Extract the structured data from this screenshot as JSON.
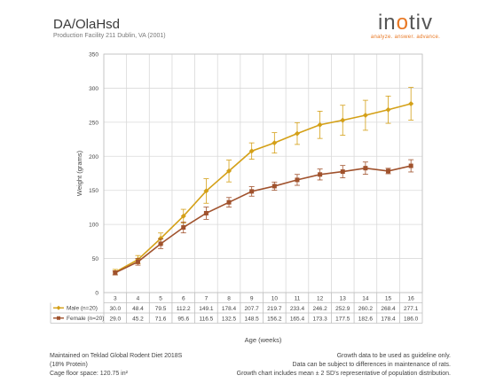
{
  "header": {
    "title": "DA/OlaHsd",
    "subtitle": "Production Facility 211 Dublin, VA (2001)"
  },
  "brand": {
    "name_part1": "in",
    "name_accent": "o",
    "name_part2": "tiv",
    "tagline": "analyze. answer. advance."
  },
  "colors": {
    "male": "#d4a017",
    "female": "#a0522d",
    "grid": "#d9d9d9",
    "brand_accent": "#e87722"
  },
  "chart_data": {
    "type": "line",
    "ylabel": "Weight (grams)",
    "xlabel": "Age (weeks)",
    "ylim": [
      0,
      350
    ],
    "yticks": [
      0,
      50,
      100,
      150,
      200,
      250,
      300,
      350
    ],
    "grid": true,
    "categories": [
      3,
      4,
      5,
      6,
      7,
      8,
      9,
      10,
      11,
      12,
      13,
      14,
      15,
      16
    ],
    "series": [
      {
        "name": "Male (n=20)",
        "marker": "diamond",
        "values": [
          30.0,
          48.4,
          79.5,
          112.2,
          149.1,
          178.4,
          207.7,
          219.7,
          233.4,
          246.2,
          252.9,
          260.2,
          268.4,
          277.1
        ],
        "labels": [
          "30.0",
          "48.4",
          "79.5",
          "112.2",
          "149.1",
          "178.4",
          "207.7",
          "219.7",
          "233.4",
          "246.2",
          "252.9",
          "260.2",
          "268.4",
          "277.1"
        ],
        "error": [
          4,
          6,
          8,
          10,
          18,
          16,
          12,
          15,
          16,
          20,
          22,
          22,
          20,
          24
        ]
      },
      {
        "name": "Female (n=20)",
        "marker": "square",
        "values": [
          29.0,
          45.2,
          71.6,
          95.6,
          116.5,
          132.5,
          148.5,
          156.2,
          165.4,
          173.3,
          177.5,
          182.6,
          178.4,
          186.0
        ],
        "labels": [
          "29.0",
          "45.2",
          "71.6",
          "95.6",
          "116.5",
          "132.5",
          "148.5",
          "156.2",
          "165.4",
          "173.3",
          "177.5",
          "182.6",
          "178.4",
          "186.0"
        ],
        "error": [
          3,
          5,
          7,
          8,
          9,
          7,
          7,
          6,
          8,
          8,
          9,
          9,
          4,
          9
        ]
      }
    ]
  },
  "footer": {
    "left_lines": [
      "Maintained on Teklad Global Rodent Diet 2018S",
      "(18% Protein)",
      "Cage floor space: 120.75 in²"
    ],
    "right_lines": [
      "Growth data to be used as guideline only.",
      "Data can be subject to differences in maintenance of rats.",
      "Growth chart includes mean ± 2 SD's representative of population distribution."
    ]
  }
}
